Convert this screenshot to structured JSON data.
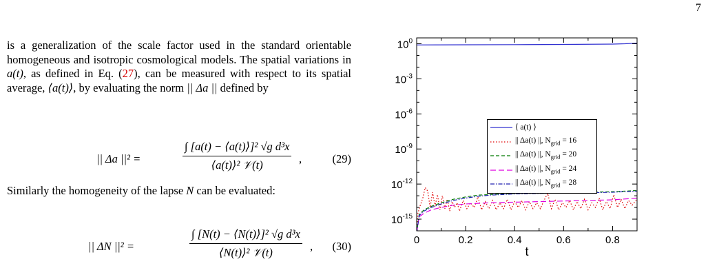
{
  "page": {
    "number": "7"
  },
  "text": {
    "para1_a": "is a generalization of the scale factor used in the standard orientable homogeneous and isotropic cosmological models. The spatial variations in ",
    "para1_var_a": "a(t)",
    "para1_b": ", as defined in Eq. (",
    "para1_ref": "27",
    "para1_c": "), can be measured with respect to its spatial average, ",
    "para1_avg": "⟨a(t)⟩",
    "para1_d": ", by evaluating the norm ",
    "para1_norm": "|| Δa ||",
    "para1_e": " defined by",
    "para2_a": "Similarly the homogeneity of the lapse ",
    "para2_var": "N",
    "para2_b": " can be evaluated:"
  },
  "equations": {
    "eq29": {
      "lhs": "|| Δa ||² =",
      "numerator": "∫ [a(t) − ⟨a(t)⟩]² √g d³x",
      "denominator": "⟨a(t)⟩² 𝒱(t)",
      "trail": ",",
      "number": "(29)"
    },
    "eq30": {
      "lhs": "|| ΔN ||²  =",
      "numerator": "∫ [N(t) − ⟨N(t)⟩]² √g d³x",
      "denominator": "⟨N(t)⟩² 𝒱(t)",
      "trail": ",",
      "number": "(30)"
    }
  },
  "chart_data": {
    "type": "line",
    "title": "",
    "xlabel": "t",
    "ylabel": "",
    "xlim": [
      0,
      0.9
    ],
    "ylim_log10": [
      -16,
      0.5
    ],
    "y_scale": "log",
    "x_ticks": [
      {
        "value": 0,
        "label": "0"
      },
      {
        "value": 0.2,
        "label": "0.2"
      },
      {
        "value": 0.4,
        "label": "0.4"
      },
      {
        "value": 0.6,
        "label": "0.6"
      },
      {
        "value": 0.8,
        "label": "0.8"
      }
    ],
    "y_ticks": [
      {
        "exp": 0,
        "base": "10",
        "sup": "0"
      },
      {
        "exp": -3,
        "base": "10",
        "sup": "-3"
      },
      {
        "exp": -6,
        "base": "10",
        "sup": "-6"
      },
      {
        "exp": -9,
        "base": "10",
        "sup": "-9"
      },
      {
        "exp": -12,
        "base": "10",
        "sup": "-12"
      },
      {
        "exp": -15,
        "base": "10",
        "sup": "-15"
      }
    ],
    "legend_placement": "center",
    "grid": false,
    "series": [
      {
        "name": "⟨ a(t) ⟩",
        "sub": "",
        "color": "#3030d0",
        "dash": "",
        "points": [
          [
            0,
            -0.1
          ],
          [
            0.2,
            -0.09
          ],
          [
            0.4,
            -0.08
          ],
          [
            0.6,
            -0.06
          ],
          [
            0.8,
            -0.03
          ],
          [
            0.85,
            0.0
          ],
          [
            0.9,
            0.05
          ]
        ]
      },
      {
        "name": "|| Δa(t) ||,  N",
        "sub": "grid",
        "suffix": " = 16",
        "color": "#e00000",
        "dash": "1.5,2.5",
        "points": [
          [
            0,
            -16.2
          ],
          [
            0.005,
            -14.5
          ],
          [
            0.015,
            -13.8
          ],
          [
            0.025,
            -13.2
          ],
          [
            0.035,
            -12.3
          ],
          [
            0.045,
            -12.6
          ],
          [
            0.055,
            -14.0
          ],
          [
            0.065,
            -12.7
          ],
          [
            0.075,
            -13.9
          ],
          [
            0.085,
            -12.9
          ],
          [
            0.095,
            -14.2
          ],
          [
            0.105,
            -13.0
          ],
          [
            0.115,
            -14.1
          ],
          [
            0.125,
            -13.3
          ],
          [
            0.135,
            -14.3
          ],
          [
            0.145,
            -13.5
          ],
          [
            0.155,
            -14.0
          ],
          [
            0.165,
            -13.6
          ],
          [
            0.175,
            -14.3
          ],
          [
            0.19,
            -13.4
          ],
          [
            0.205,
            -14.1
          ],
          [
            0.22,
            -13.6
          ],
          [
            0.235,
            -14.0
          ],
          [
            0.25,
            -13.1
          ],
          [
            0.265,
            -14.2
          ],
          [
            0.28,
            -13.5
          ],
          [
            0.295,
            -14.1
          ],
          [
            0.31,
            -13.4
          ],
          [
            0.325,
            -14.2
          ],
          [
            0.34,
            -13.6
          ],
          [
            0.355,
            -14.1
          ],
          [
            0.37,
            -13.3
          ],
          [
            0.385,
            -14.2
          ],
          [
            0.4,
            -13.5
          ],
          [
            0.415,
            -14.0
          ],
          [
            0.43,
            -13.4
          ],
          [
            0.445,
            -14.2
          ],
          [
            0.46,
            -13.5
          ],
          [
            0.475,
            -14.1
          ],
          [
            0.49,
            -13.6
          ],
          [
            0.505,
            -14.1
          ],
          [
            0.52,
            -13.4
          ],
          [
            0.535,
            -12.8
          ],
          [
            0.55,
            -14.1
          ],
          [
            0.565,
            -13.3
          ],
          [
            0.58,
            -14.2
          ],
          [
            0.595,
            -13.6
          ],
          [
            0.61,
            -14.0
          ],
          [
            0.625,
            -13.4
          ],
          [
            0.64,
            -14.2
          ],
          [
            0.655,
            -13.5
          ],
          [
            0.67,
            -14.1
          ],
          [
            0.685,
            -13.3
          ],
          [
            0.7,
            -14.2
          ],
          [
            0.715,
            -13.6
          ],
          [
            0.73,
            -14.0
          ],
          [
            0.745,
            -13.2
          ],
          [
            0.76,
            -14.2
          ],
          [
            0.775,
            -13.5
          ],
          [
            0.79,
            -14.1
          ],
          [
            0.805,
            -12.9
          ],
          [
            0.82,
            -14.0
          ],
          [
            0.835,
            -13.3
          ],
          [
            0.85,
            -14.1
          ],
          [
            0.865,
            -13.4
          ],
          [
            0.88,
            -13.8
          ],
          [
            0.9,
            -13.3
          ]
        ]
      },
      {
        "name": "|| Δa(t) ||,  N",
        "sub": "grid",
        "suffix": " = 20",
        "color": "#007a00",
        "dash": "5,3",
        "points": [
          [
            0,
            -16.2
          ],
          [
            0.01,
            -14.6
          ],
          [
            0.03,
            -14.2
          ],
          [
            0.06,
            -13.9
          ],
          [
            0.1,
            -13.6
          ],
          [
            0.15,
            -13.3
          ],
          [
            0.2,
            -13.1
          ],
          [
            0.25,
            -12.95
          ],
          [
            0.3,
            -12.9
          ],
          [
            0.4,
            -12.8
          ],
          [
            0.5,
            -12.75
          ],
          [
            0.6,
            -12.7
          ],
          [
            0.7,
            -12.7
          ],
          [
            0.8,
            -12.65
          ],
          [
            0.9,
            -12.55
          ]
        ]
      },
      {
        "name": "|| Δa(t) ||,  N",
        "sub": "grid",
        "suffix": " = 24",
        "color": "#e000e0",
        "dash": "8,4",
        "points": [
          [
            0,
            -16.2
          ],
          [
            0.01,
            -14.8
          ],
          [
            0.03,
            -14.5
          ],
          [
            0.06,
            -14.2
          ],
          [
            0.1,
            -14.0
          ],
          [
            0.15,
            -13.8
          ],
          [
            0.2,
            -13.7
          ],
          [
            0.25,
            -13.65
          ],
          [
            0.3,
            -13.6
          ],
          [
            0.4,
            -13.55
          ],
          [
            0.5,
            -13.5
          ],
          [
            0.6,
            -13.45
          ],
          [
            0.7,
            -13.4
          ],
          [
            0.8,
            -13.35
          ],
          [
            0.9,
            -13.2
          ]
        ]
      },
      {
        "name": "|| Δa(t) ||,  N",
        "sub": "grid",
        "suffix": " = 28",
        "color": "#2020b0",
        "dash": "6,2,1.5,2",
        "points": [
          [
            0,
            -16.2
          ],
          [
            0.01,
            -14.7
          ],
          [
            0.03,
            -14.3
          ],
          [
            0.06,
            -14.0
          ],
          [
            0.1,
            -13.7
          ],
          [
            0.15,
            -13.4
          ],
          [
            0.2,
            -13.2
          ],
          [
            0.25,
            -13.05
          ],
          [
            0.3,
            -12.95
          ],
          [
            0.4,
            -12.85
          ],
          [
            0.5,
            -12.8
          ],
          [
            0.6,
            -12.75
          ],
          [
            0.7,
            -12.75
          ],
          [
            0.8,
            -12.7
          ],
          [
            0.9,
            -12.6
          ]
        ]
      }
    ]
  }
}
